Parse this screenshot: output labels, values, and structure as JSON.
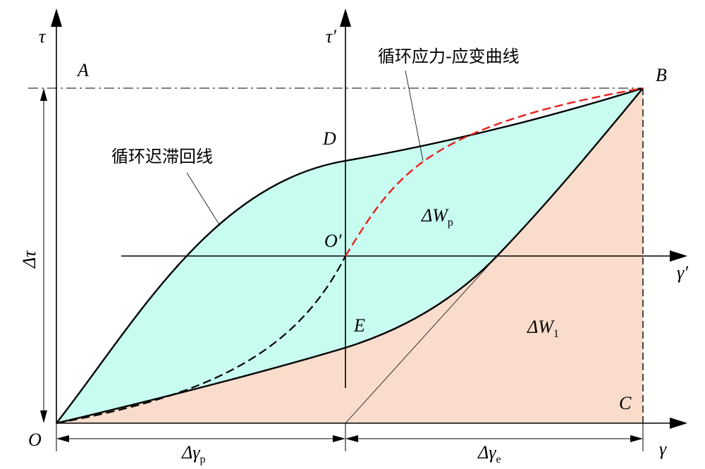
{
  "axes": {
    "tau": "τ",
    "tau_prime": "τ′",
    "gamma": "γ",
    "gamma_prime": "γ′"
  },
  "points": [
    "A",
    "B",
    "C",
    "D",
    "E",
    "O",
    "O′"
  ],
  "dimensions": {
    "delta_tau": "Δτ",
    "delta_gamma_p": {
      "main": "Δγ",
      "sub": "p"
    },
    "delta_gamma_e": {
      "main": "Δγ",
      "sub": "e"
    }
  },
  "areas": {
    "plastic": {
      "main": "ΔW",
      "sub": "p"
    },
    "elastic": {
      "main": "ΔW",
      "sub": "1"
    }
  },
  "labels": {
    "cyclic_curve": "循环应力-应变曲线",
    "hysteresis_loop": "循环迟滞回线"
  }
}
